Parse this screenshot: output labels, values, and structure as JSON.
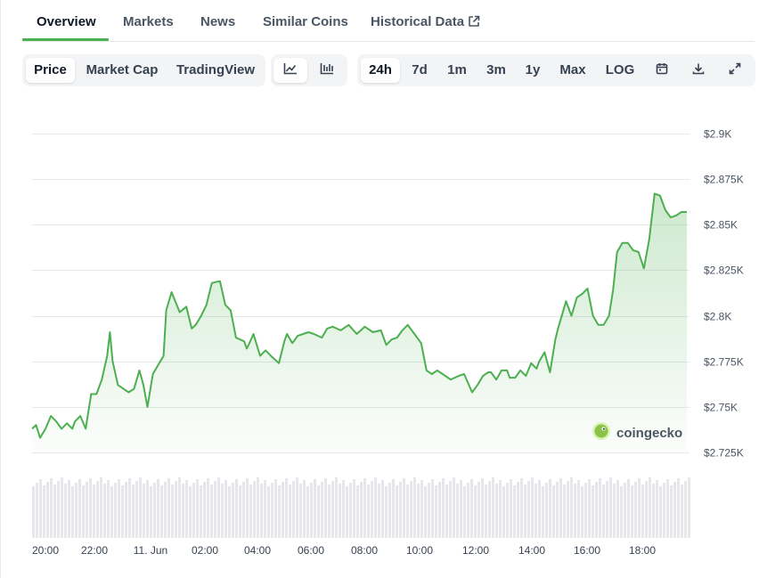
{
  "tabs": [
    {
      "label": "Overview",
      "active": true
    },
    {
      "label": "Markets"
    },
    {
      "label": "News"
    },
    {
      "label": "Similar Coins"
    },
    {
      "label": "Historical Data",
      "external": true
    }
  ],
  "toolbar": {
    "metrics": [
      {
        "label": "Price",
        "selected": true
      },
      {
        "label": "Market Cap"
      },
      {
        "label": "TradingView"
      }
    ],
    "chart_types": [
      {
        "icon": "line-chart-icon",
        "selected": true
      },
      {
        "icon": "candlestick-chart-icon"
      }
    ],
    "ranges": [
      {
        "label": "24h",
        "selected": true
      },
      {
        "label": "7d"
      },
      {
        "label": "1m"
      },
      {
        "label": "3m"
      },
      {
        "label": "1y"
      },
      {
        "label": "Max"
      },
      {
        "label": "LOG"
      }
    ],
    "actions": [
      {
        "icon": "calendar-icon"
      },
      {
        "icon": "download-icon"
      },
      {
        "icon": "expand-icon"
      }
    ]
  },
  "watermark": {
    "text": "coingecko"
  },
  "colors": {
    "line": "#4caf50",
    "accent": "#4caf50",
    "volume": "#e5e7eb",
    "grid": "#e5e7eb"
  },
  "chart_data": {
    "type": "area",
    "x_tick_labels": [
      "20:00",
      "22:00",
      "11. Jun",
      "02:00",
      "04:00",
      "06:00",
      "08:00",
      "10:00",
      "12:00",
      "14:00",
      "16:00",
      "18:00"
    ],
    "y_tick_labels": [
      "$2.725K",
      "$2.75K",
      "$2.775K",
      "$2.8K",
      "$2.825K",
      "$2.85K",
      "$2.875K",
      "$2.9K"
    ],
    "y_ticks": [
      2725,
      2750,
      2775,
      2800,
      2825,
      2850,
      2875,
      2900
    ],
    "ylim": [
      2725,
      2900
    ],
    "x_hours": [
      0,
      24.5
    ],
    "grid": true,
    "price_series": {
      "x": [
        0,
        0.15,
        0.3,
        0.5,
        0.7,
        0.9,
        1.1,
        1.3,
        1.5,
        1.6,
        1.8,
        2.0,
        2.2,
        2.4,
        2.6,
        2.8,
        2.9,
        3.0,
        3.2,
        3.4,
        3.6,
        3.8,
        4.0,
        4.15,
        4.3,
        4.5,
        4.7,
        4.9,
        5.0,
        5.2,
        5.5,
        5.75,
        5.95,
        6.1,
        6.3,
        6.5,
        6.7,
        7.0,
        7.2,
        7.4,
        7.6,
        7.9,
        8.0,
        8.1,
        8.25,
        8.5,
        8.7,
        8.9,
        9.2,
        9.4,
        9.5,
        9.7,
        9.9,
        10.3,
        10.5,
        10.8,
        11.0,
        11.2,
        11.5,
        11.8,
        12.1,
        12.4,
        12.7,
        13.0,
        13.2,
        13.4,
        13.6,
        13.8,
        14.0,
        14.1,
        14.3,
        14.5,
        14.7,
        14.9,
        15.1,
        15.3,
        15.6,
        15.9,
        16.1,
        16.4,
        16.6,
        16.8,
        17.0,
        17.1,
        17.3,
        17.5,
        17.7,
        17.8,
        18.0,
        18.2,
        18.4,
        18.6,
        18.8,
        18.9,
        19.1,
        19.3,
        19.5,
        19.6,
        19.9,
        20.1,
        20.3,
        20.5,
        20.7,
        20.9,
        21.1,
        21.3,
        21.5,
        21.65,
        21.8,
        22.0,
        22.2,
        22.4,
        22.6,
        22.8,
        23.0,
        23.2,
        23.4,
        23.6,
        23.8,
        24.0,
        24.2,
        24.4
      ],
      "y": [
        2738,
        2740,
        2733,
        2738,
        2745,
        2742,
        2738,
        2741,
        2738,
        2742,
        2745,
        2738,
        2757,
        2757,
        2765,
        2778,
        2791,
        2775,
        2762,
        2760,
        2758,
        2760,
        2770,
        2762,
        2750,
        2768,
        2773,
        2778,
        2803,
        2813,
        2802,
        2805,
        2793,
        2795,
        2800,
        2806,
        2818,
        2819,
        2806,
        2803,
        2788,
        2786,
        2782,
        2785,
        2790,
        2778,
        2781,
        2778,
        2774,
        2786,
        2790,
        2785,
        2789,
        2791,
        2790,
        2788,
        2793,
        2794,
        2792,
        2795,
        2790,
        2794,
        2791,
        2792,
        2784,
        2787,
        2788,
        2792,
        2795,
        2793,
        2789,
        2785,
        2770,
        2768,
        2770,
        2768,
        2765,
        2767,
        2768,
        2758,
        2762,
        2767,
        2769,
        2769,
        2765,
        2770,
        2770,
        2766,
        2766,
        2770,
        2767,
        2774,
        2771,
        2775,
        2780,
        2769,
        2787,
        2793,
        2808,
        2800,
        2810,
        2812,
        2815,
        2800,
        2795,
        2795,
        2800,
        2814,
        2835,
        2840,
        2840,
        2836,
        2835,
        2826,
        2842,
        2867,
        2866,
        2858,
        2854,
        2855,
        2857,
        2857
      ]
    },
    "volume_series": {
      "x": [
        0,
        24.5
      ],
      "note": "volume bars shown without axis"
    }
  }
}
